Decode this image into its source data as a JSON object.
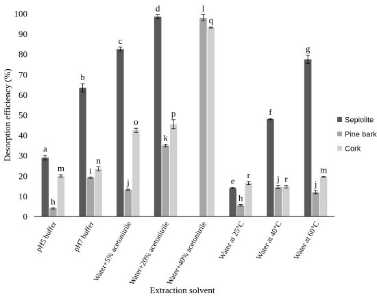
{
  "chart_data": {
    "type": "bar",
    "title": "",
    "xlabel": "Extraction solvent",
    "ylabel": "Desorption efficiency (%)",
    "ylim": [
      0,
      100
    ],
    "yticks": [
      0,
      10,
      20,
      30,
      40,
      50,
      60,
      70,
      80,
      90,
      100
    ],
    "grid": false,
    "legend_position": "right",
    "categories": [
      "pH5 buffer",
      "pH7 buffer",
      "Water+5% acetonitrile",
      "Water+20% acetonitrile",
      "Water+40% acetonitrile",
      "Water at 25°C",
      "Water at 40°C",
      "Water at 60°C"
    ],
    "series": [
      {
        "name": "Sepiolite",
        "color": "#595959",
        "values": [
          29,
          63.5,
          82.5,
          98.5,
          null,
          14,
          48,
          77.5
        ],
        "errors": [
          1.2,
          2,
          1,
          1,
          null,
          0.3,
          0.3,
          2
        ],
        "labels": [
          "a",
          "b",
          "c",
          "d",
          "",
          "e",
          "f",
          "g"
        ]
      },
      {
        "name": "Pine bark",
        "color": "#a6a6a6",
        "values": [
          4,
          19.2,
          13.2,
          35,
          98,
          5.5,
          14.5,
          12
        ],
        "errors": [
          0.3,
          0.3,
          0.3,
          0.6,
          1.5,
          0.4,
          0.8,
          0.8
        ],
        "labels": [
          "h",
          "i",
          "j",
          "k",
          "l",
          "h",
          "j",
          "j"
        ]
      },
      {
        "name": "Cork",
        "color": "#d0d0d0",
        "values": [
          20,
          23.5,
          42.5,
          45.5,
          93.2,
          16.5,
          14.7,
          19.5
        ],
        "errors": [
          0.6,
          1,
          1,
          2.2,
          0.3,
          0.8,
          0.6,
          0.2
        ],
        "labels": [
          "m",
          "n",
          "o",
          "p",
          "q",
          "r",
          "r",
          "m"
        ]
      }
    ]
  }
}
